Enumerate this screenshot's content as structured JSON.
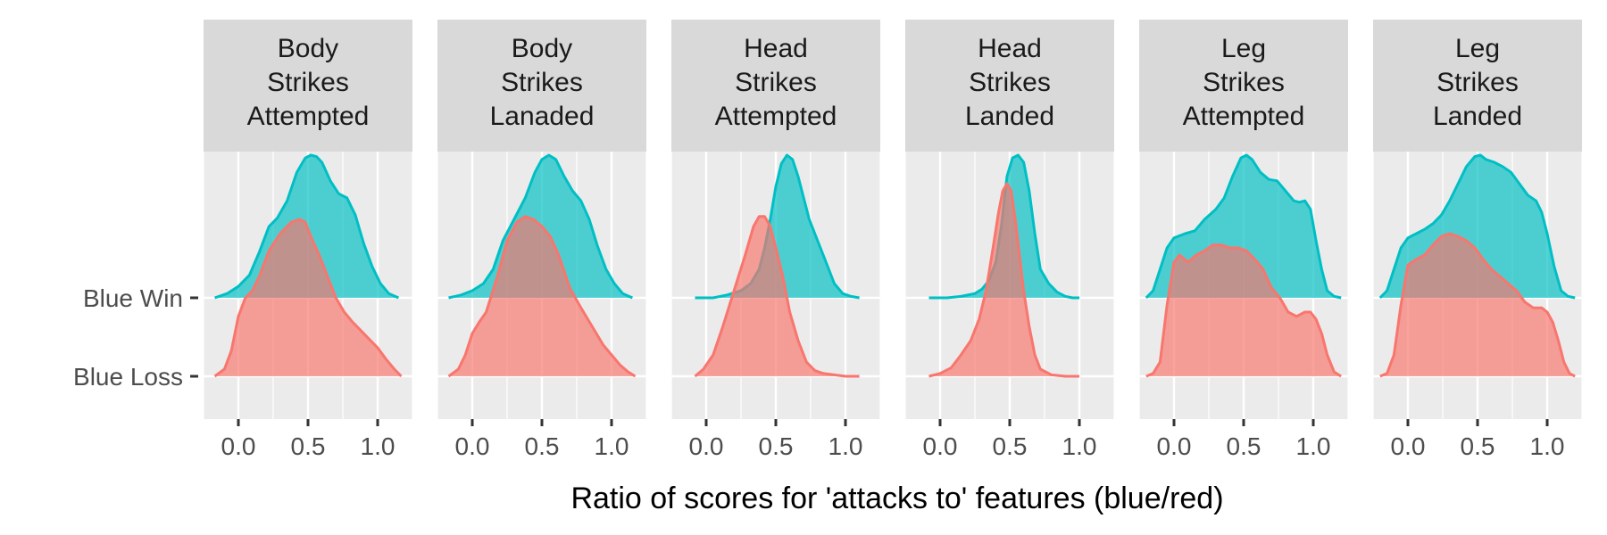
{
  "chart_data": {
    "type": "area",
    "subtype": "ridgeline-density-facets",
    "xlabel": "Ratio of scores for 'attacks to' features (blue/red)",
    "ylabel": "",
    "row_labels": [
      "Blue Win",
      "Blue Loss"
    ],
    "x_ticks": [
      0.0,
      0.5,
      1.0
    ],
    "x_tick_labels": [
      "0.0",
      "0.5",
      "1.0"
    ],
    "xlim": [
      -0.25,
      1.25
    ],
    "grid": true,
    "legend": "none",
    "colors": {
      "Blue Win": "#00BFC4",
      "Blue Loss": "#F8766D",
      "panel_bg": "#EBEBEB",
      "strip_bg": "#D9D9D9",
      "grid": "#FFFFFF"
    },
    "facets": [
      {
        "label": [
          "Body",
          "Strikes",
          "Attempted"
        ],
        "series": [
          {
            "name": "Blue Win",
            "x": [
              -0.17,
              -0.08,
              0.0,
              0.08,
              0.15,
              0.22,
              0.28,
              0.35,
              0.42,
              0.48,
              0.52,
              0.56,
              0.6,
              0.66,
              0.72,
              0.78,
              0.84,
              0.9,
              0.96,
              1.02,
              1.08,
              1.15
            ],
            "y": [
              0.0,
              0.03,
              0.08,
              0.16,
              0.32,
              0.5,
              0.56,
              0.68,
              0.88,
              0.98,
              1.0,
              0.99,
              0.95,
              0.82,
              0.73,
              0.7,
              0.58,
              0.38,
              0.22,
              0.1,
              0.03,
              0.0
            ]
          },
          {
            "name": "Blue Loss",
            "x": [
              -0.17,
              -0.1,
              -0.05,
              0.0,
              0.05,
              0.1,
              0.15,
              0.22,
              0.3,
              0.38,
              0.44,
              0.48,
              0.52,
              0.58,
              0.64,
              0.7,
              0.76,
              0.82,
              0.88,
              0.94,
              1.0,
              1.06,
              1.12,
              1.17
            ],
            "y": [
              0.0,
              0.05,
              0.18,
              0.42,
              0.55,
              0.6,
              0.7,
              0.88,
              1.0,
              1.08,
              1.1,
              1.08,
              0.98,
              0.85,
              0.7,
              0.55,
              0.45,
              0.38,
              0.32,
              0.26,
              0.2,
              0.12,
              0.05,
              0.0
            ]
          }
        ]
      },
      {
        "label": [
          "Body",
          "Strikes",
          "Lanaded"
        ],
        "series": [
          {
            "name": "Blue Win",
            "x": [
              -0.17,
              -0.08,
              0.0,
              0.08,
              0.15,
              0.22,
              0.3,
              0.38,
              0.45,
              0.5,
              0.55,
              0.6,
              0.66,
              0.72,
              0.78,
              0.84,
              0.9,
              0.96,
              1.02,
              1.08,
              1.15
            ],
            "y": [
              0.0,
              0.02,
              0.05,
              0.1,
              0.2,
              0.4,
              0.55,
              0.7,
              0.88,
              0.97,
              1.0,
              0.97,
              0.85,
              0.75,
              0.68,
              0.55,
              0.36,
              0.2,
              0.1,
              0.03,
              0.0
            ]
          },
          {
            "name": "Blue Loss",
            "x": [
              -0.17,
              -0.1,
              -0.05,
              0.0,
              0.05,
              0.1,
              0.18,
              0.25,
              0.32,
              0.38,
              0.44,
              0.5,
              0.56,
              0.62,
              0.7,
              0.78,
              0.86,
              0.94,
              1.0,
              1.06,
              1.12,
              1.17
            ],
            "y": [
              0.0,
              0.05,
              0.15,
              0.3,
              0.38,
              0.45,
              0.7,
              0.95,
              1.08,
              1.12,
              1.1,
              1.05,
              0.98,
              0.85,
              0.62,
              0.48,
              0.35,
              0.22,
              0.15,
              0.08,
              0.03,
              0.0
            ]
          }
        ]
      },
      {
        "label": [
          "Head",
          "Strikes",
          "Attempted"
        ],
        "series": [
          {
            "name": "Blue Win",
            "x": [
              -0.08,
              0.05,
              0.15,
              0.25,
              0.32,
              0.38,
              0.42,
              0.46,
              0.5,
              0.54,
              0.58,
              0.62,
              0.66,
              0.7,
              0.74,
              0.8,
              0.86,
              0.92,
              0.98,
              1.04,
              1.1
            ],
            "y": [
              0.0,
              0.0,
              0.02,
              0.05,
              0.1,
              0.2,
              0.35,
              0.55,
              0.78,
              0.94,
              1.0,
              0.97,
              0.85,
              0.7,
              0.55,
              0.4,
              0.25,
              0.1,
              0.03,
              0.01,
              0.0
            ]
          },
          {
            "name": "Blue Loss",
            "x": [
              -0.08,
              -0.02,
              0.05,
              0.12,
              0.2,
              0.28,
              0.34,
              0.38,
              0.42,
              0.46,
              0.5,
              0.55,
              0.6,
              0.66,
              0.72,
              0.78,
              0.84,
              0.92,
              1.0,
              1.1
            ],
            "y": [
              0.0,
              0.05,
              0.15,
              0.35,
              0.6,
              0.85,
              1.05,
              1.12,
              1.12,
              1.05,
              0.9,
              0.7,
              0.45,
              0.25,
              0.1,
              0.04,
              0.02,
              0.01,
              0.0,
              0.0
            ]
          }
        ]
      },
      {
        "label": [
          "Head",
          "Strikes",
          "Landed"
        ],
        "series": [
          {
            "name": "Blue Win",
            "x": [
              -0.08,
              0.05,
              0.15,
              0.25,
              0.3,
              0.35,
              0.4,
              0.44,
              0.48,
              0.52,
              0.56,
              0.6,
              0.64,
              0.68,
              0.72,
              0.78,
              0.84,
              0.9,
              0.95,
              1.0
            ],
            "y": [
              0.0,
              0.0,
              0.01,
              0.03,
              0.06,
              0.12,
              0.25,
              0.5,
              0.85,
              0.98,
              1.0,
              0.95,
              0.75,
              0.45,
              0.2,
              0.1,
              0.04,
              0.01,
              0.0,
              0.0
            ]
          },
          {
            "name": "Blue Loss",
            "x": [
              -0.08,
              0.0,
              0.08,
              0.15,
              0.22,
              0.28,
              0.33,
              0.38,
              0.42,
              0.45,
              0.48,
              0.51,
              0.54,
              0.57,
              0.6,
              0.64,
              0.68,
              0.72,
              0.8,
              0.9,
              1.0
            ],
            "y": [
              0.0,
              0.02,
              0.06,
              0.15,
              0.25,
              0.4,
              0.6,
              0.9,
              1.15,
              1.3,
              1.35,
              1.3,
              1.1,
              0.85,
              0.6,
              0.35,
              0.15,
              0.05,
              0.01,
              0.0,
              0.0
            ]
          }
        ]
      },
      {
        "label": [
          "Leg",
          "Strikes",
          "Attempted"
        ],
        "series": [
          {
            "name": "Blue Win",
            "x": [
              -0.2,
              -0.15,
              -0.1,
              -0.05,
              0.0,
              0.08,
              0.15,
              0.22,
              0.3,
              0.36,
              0.42,
              0.48,
              0.52,
              0.56,
              0.62,
              0.68,
              0.74,
              0.8,
              0.86,
              0.9,
              0.94,
              0.98,
              1.02,
              1.06,
              1.1,
              1.15,
              1.2
            ],
            "y": [
              0.0,
              0.05,
              0.2,
              0.35,
              0.42,
              0.45,
              0.47,
              0.55,
              0.62,
              0.7,
              0.85,
              0.98,
              1.0,
              0.97,
              0.88,
              0.83,
              0.82,
              0.75,
              0.68,
              0.67,
              0.68,
              0.62,
              0.4,
              0.2,
              0.05,
              0.01,
              0.0
            ]
          },
          {
            "name": "Blue Loss",
            "x": [
              -0.2,
              -0.15,
              -0.1,
              -0.05,
              0.0,
              0.04,
              0.1,
              0.16,
              0.22,
              0.28,
              0.34,
              0.4,
              0.46,
              0.52,
              0.58,
              0.64,
              0.7,
              0.76,
              0.82,
              0.88,
              0.94,
              0.98,
              1.02,
              1.06,
              1.1,
              1.15,
              1.2
            ],
            "y": [
              0.0,
              0.02,
              0.1,
              0.5,
              0.8,
              0.85,
              0.8,
              0.85,
              0.88,
              0.92,
              0.92,
              0.9,
              0.9,
              0.88,
              0.82,
              0.75,
              0.62,
              0.55,
              0.45,
              0.42,
              0.45,
              0.45,
              0.4,
              0.3,
              0.15,
              0.03,
              0.0
            ]
          }
        ]
      },
      {
        "label": [
          "Leg",
          "Strikes",
          "Landed"
        ],
        "series": [
          {
            "name": "Blue Win",
            "x": [
              -0.2,
              -0.15,
              -0.1,
              -0.05,
              0.0,
              0.06,
              0.12,
              0.18,
              0.24,
              0.3,
              0.36,
              0.42,
              0.48,
              0.52,
              0.56,
              0.62,
              0.68,
              0.74,
              0.8,
              0.86,
              0.92,
              0.96,
              1.0,
              1.05,
              1.1,
              1.15,
              1.2
            ],
            "y": [
              0.0,
              0.05,
              0.2,
              0.35,
              0.42,
              0.45,
              0.48,
              0.52,
              0.58,
              0.68,
              0.8,
              0.92,
              0.99,
              1.0,
              0.97,
              0.95,
              0.92,
              0.88,
              0.8,
              0.72,
              0.68,
              0.6,
              0.45,
              0.22,
              0.05,
              0.01,
              0.0
            ]
          },
          {
            "name": "Blue Loss",
            "x": [
              -0.2,
              -0.15,
              -0.1,
              -0.05,
              0.0,
              0.06,
              0.12,
              0.18,
              0.24,
              0.3,
              0.36,
              0.42,
              0.48,
              0.54,
              0.6,
              0.66,
              0.72,
              0.78,
              0.84,
              0.9,
              0.96,
              1.0,
              1.04,
              1.08,
              1.12,
              1.16,
              1.2
            ],
            "y": [
              0.0,
              0.02,
              0.15,
              0.5,
              0.78,
              0.82,
              0.85,
              0.92,
              0.98,
              1.0,
              0.98,
              0.95,
              0.9,
              0.82,
              0.75,
              0.7,
              0.65,
              0.6,
              0.52,
              0.48,
              0.48,
              0.45,
              0.38,
              0.25,
              0.1,
              0.02,
              0.0
            ]
          }
        ]
      }
    ]
  }
}
